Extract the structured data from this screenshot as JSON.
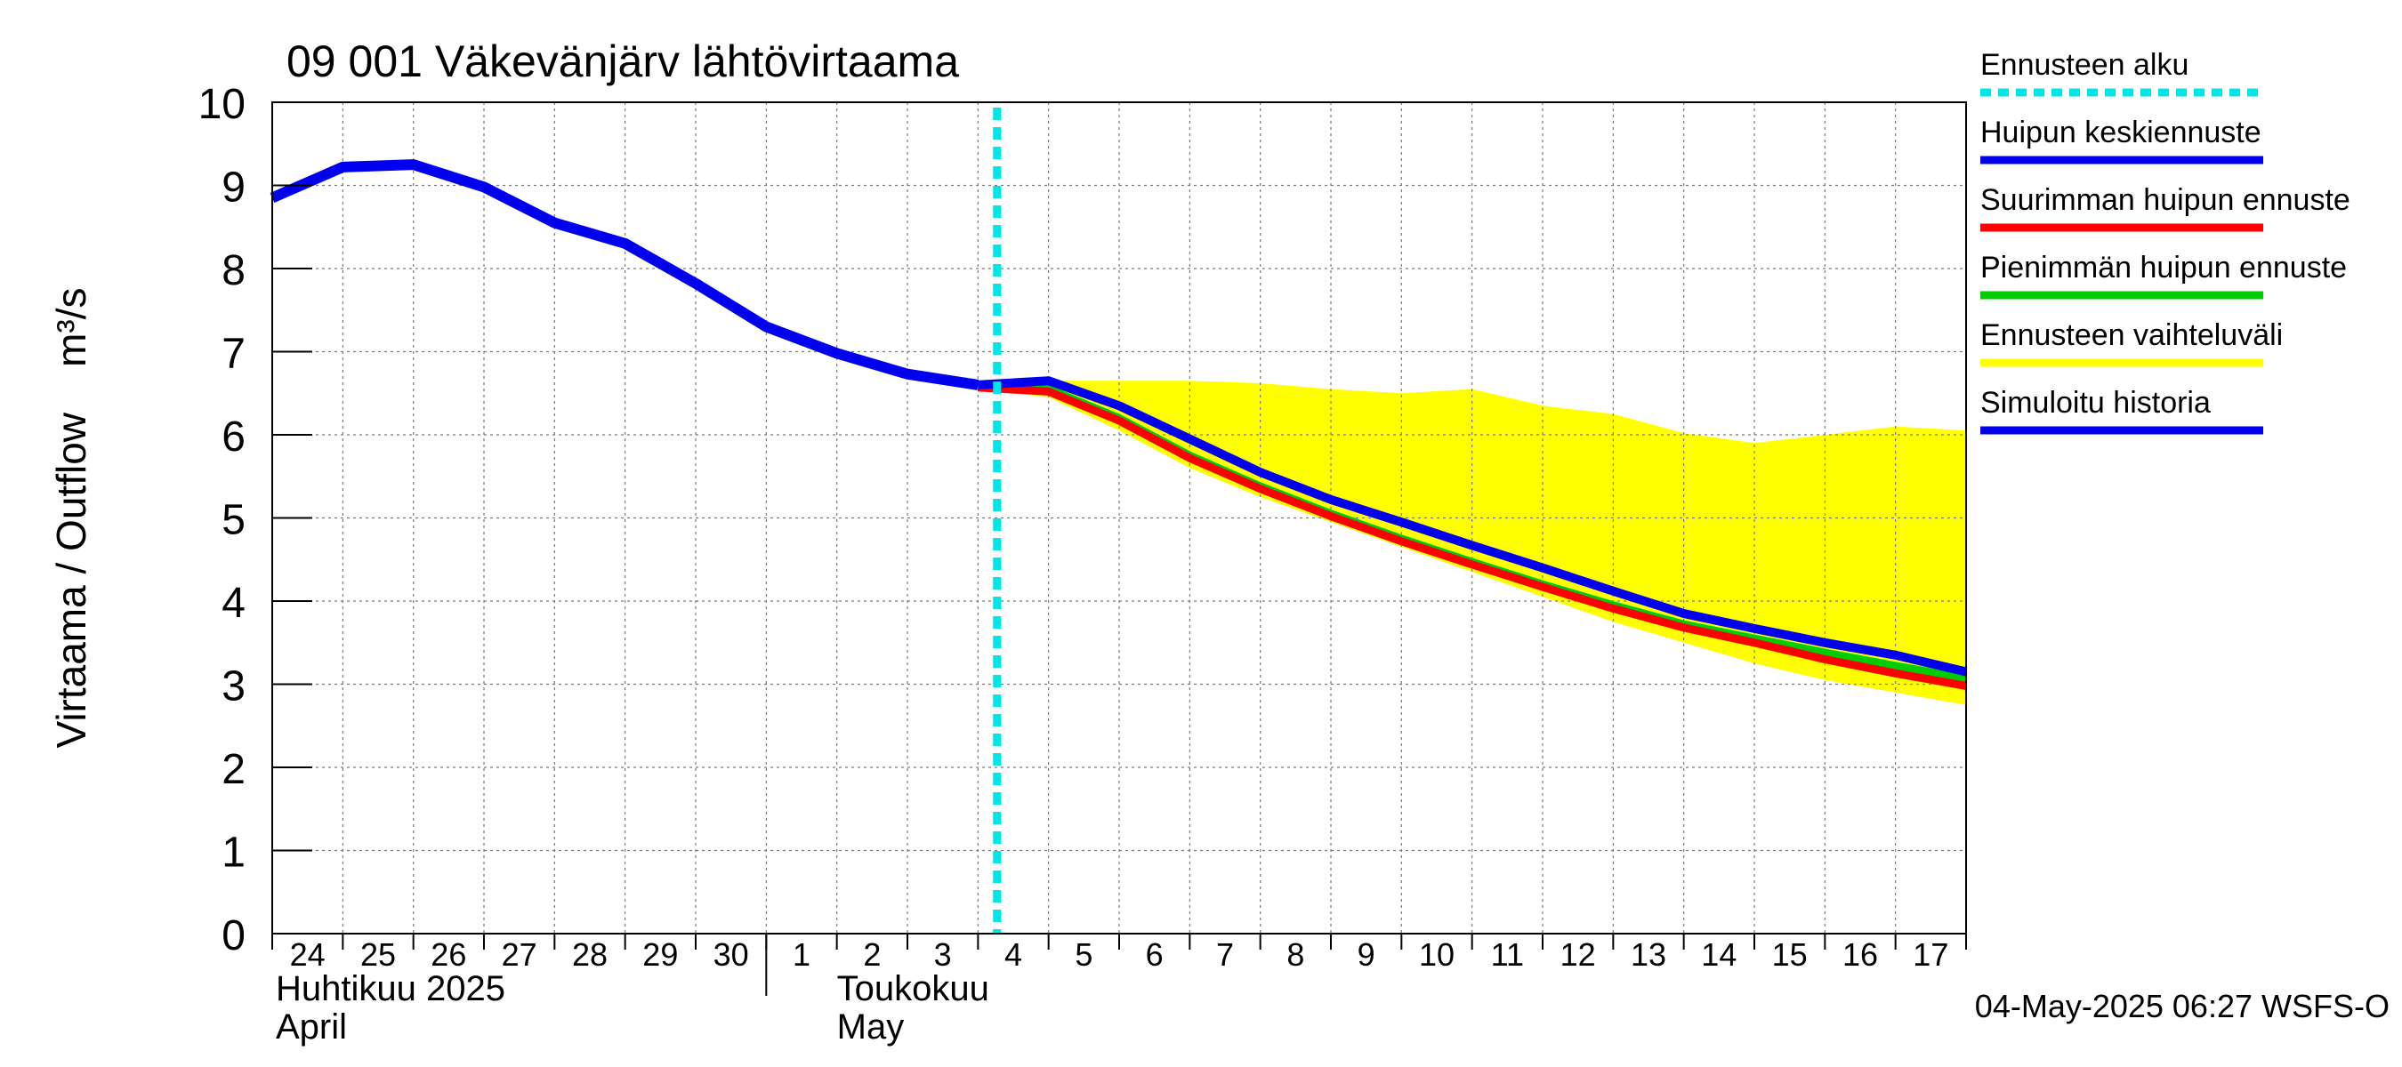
{
  "chart_data": {
    "type": "line",
    "title": "09 001 Väkevänjärv lähtövirtaama",
    "ylabel": "Virtaama / Outflow    m³/s",
    "ylim": [
      0,
      10
    ],
    "yticks": [
      0,
      1,
      2,
      3,
      4,
      5,
      6,
      7,
      8,
      9,
      10
    ],
    "x_start": "2025-04-24",
    "x_end": "2025-05-18",
    "x_tick_labels": [
      "24",
      "25",
      "26",
      "27",
      "28",
      "29",
      "30",
      "1",
      "2",
      "3",
      "4",
      "5",
      "6",
      "7",
      "8",
      "9",
      "10",
      "11",
      "12",
      "13",
      "14",
      "15",
      "16",
      "17"
    ],
    "month_labels": [
      {
        "fi": "Huhtikuu  2025",
        "en": "April",
        "start": "2025-04-24"
      },
      {
        "fi": "Toukokuu",
        "en": "May",
        "start": "2025-05-01"
      }
    ],
    "forecast_start": "2025-05-04",
    "grid": true,
    "legend_position": "right",
    "timestamp": "04-May-2025 06:27 WSFS-O",
    "legend": [
      {
        "label": "Ennusteen alku",
        "color": "#00e5e5",
        "style": "dashed"
      },
      {
        "label": "Huipun keskiennuste",
        "color": "#0000ee",
        "style": "solid"
      },
      {
        "label": "Suurimman huipun ennuste",
        "color": "#ff0000",
        "style": "solid"
      },
      {
        "label": "Pienimmän huipun ennuste",
        "color": "#00cc00",
        "style": "solid"
      },
      {
        "label": "Ennusteen vaihteluväli",
        "color": "#ffff00",
        "style": "solid"
      },
      {
        "label": "Simuloitu historia",
        "color": "#0000ee",
        "style": "solid"
      }
    ],
    "series": [
      {
        "name": "Ennusteen vaihteluväli",
        "kind": "band",
        "color": "#ffff00",
        "x": [
          "2025-05-04",
          "2025-05-05",
          "2025-05-06",
          "2025-05-07",
          "2025-05-08",
          "2025-05-09",
          "2025-05-10",
          "2025-05-11",
          "2025-05-12",
          "2025-05-13",
          "2025-05-14",
          "2025-05-15",
          "2025-05-16",
          "2025-05-17",
          "2025-05-18"
        ],
        "upper": [
          6.6,
          6.65,
          6.65,
          6.65,
          6.62,
          6.55,
          6.5,
          6.55,
          6.35,
          6.25,
          6.02,
          5.9,
          6.0,
          6.1,
          6.05
        ],
        "lower": [
          6.55,
          6.45,
          6.05,
          5.6,
          5.25,
          4.95,
          4.65,
          4.35,
          4.05,
          3.75,
          3.5,
          3.25,
          3.05,
          2.9,
          2.75
        ]
      },
      {
        "name": "Pienimmän huipun ennuste",
        "color": "#00cc00",
        "x": [
          "2025-05-04",
          "2025-05-05",
          "2025-05-06",
          "2025-05-07",
          "2025-05-08",
          "2025-05-09",
          "2025-05-10",
          "2025-05-11",
          "2025-05-12",
          "2025-05-13",
          "2025-05-14",
          "2025-05-15",
          "2025-05-16",
          "2025-05-17",
          "2025-05-18"
        ],
        "values": [
          6.6,
          6.55,
          6.2,
          5.75,
          5.38,
          5.05,
          4.75,
          4.47,
          4.2,
          3.95,
          3.72,
          3.55,
          3.38,
          3.22,
          3.07
        ]
      },
      {
        "name": "Suurimman huipun ennuste",
        "color": "#ff0000",
        "x": [
          "2025-05-04",
          "2025-05-05",
          "2025-05-06",
          "2025-05-07",
          "2025-05-08",
          "2025-05-09",
          "2025-05-10",
          "2025-05-11",
          "2025-05-12",
          "2025-05-13",
          "2025-05-14",
          "2025-05-15",
          "2025-05-16",
          "2025-05-17",
          "2025-05-18"
        ],
        "values": [
          6.57,
          6.52,
          6.17,
          5.72,
          5.35,
          5.02,
          4.72,
          4.44,
          4.17,
          3.91,
          3.68,
          3.5,
          3.3,
          3.13,
          2.98
        ]
      },
      {
        "name": "Huipun keskiennuste",
        "color": "#0000ee",
        "x": [
          "2025-05-04",
          "2025-05-05",
          "2025-05-06",
          "2025-05-07",
          "2025-05-08",
          "2025-05-09",
          "2025-05-10",
          "2025-05-11",
          "2025-05-12",
          "2025-05-13",
          "2025-05-14",
          "2025-05-15",
          "2025-05-16",
          "2025-05-17",
          "2025-05-18"
        ],
        "values": [
          6.6,
          6.65,
          6.35,
          5.95,
          5.55,
          5.22,
          4.95,
          4.67,
          4.4,
          4.12,
          3.85,
          3.67,
          3.5,
          3.35,
          3.15
        ]
      },
      {
        "name": "Simuloitu historia",
        "color": "#0000ee",
        "x": [
          "2025-04-24",
          "2025-04-25",
          "2025-04-26",
          "2025-04-27",
          "2025-04-28",
          "2025-04-29",
          "2025-04-30",
          "2025-05-01",
          "2025-05-02",
          "2025-05-03",
          "2025-05-04"
        ],
        "values": [
          8.85,
          9.22,
          9.25,
          8.98,
          8.55,
          8.3,
          7.82,
          7.3,
          6.98,
          6.73,
          6.6
        ]
      }
    ]
  }
}
